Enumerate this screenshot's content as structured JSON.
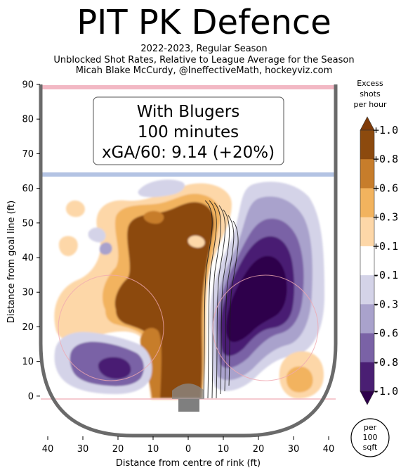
{
  "header": {
    "title": "PIT PK Defence",
    "subtitle_lines": [
      "2022-2023, Regular Season",
      "Unblocked Shot Rates, Relative to League Average for the Season",
      "Micah Blake McCurdy, @IneffectiveMath, hockeyviz.com"
    ]
  },
  "annotation": {
    "lines": [
      "With Blugers",
      "100 minutes",
      "xGA/60: 9.14 (+20%)"
    ]
  },
  "colorbar": {
    "title_lines": [
      "Excess",
      "shots",
      "per hour"
    ],
    "levels": [
      "+1.0",
      "+0.8",
      "+0.6",
      "+0.3",
      "+0.1",
      "-0.1",
      "-0.3",
      "-0.6",
      "-0.8",
      "-1.0"
    ],
    "colors": [
      "#8c4a0e",
      "#c77d2b",
      "#f2b35e",
      "#fdd7a8",
      "#ffffff",
      "#d4d3e8",
      "#a9a2cc",
      "#7a62a6",
      "#4a1f73"
    ],
    "over_color": "#7f3b08",
    "under_color": "#2d004b"
  },
  "unit_badge": {
    "lines": [
      "per",
      "100",
      "sqft"
    ]
  },
  "chart_data": {
    "type": "heatmap",
    "title": "PIT PK Defence",
    "xlabel": "Distance from centre of rink (ft)",
    "ylabel": "Distance from goal line (ft)",
    "xlim": [
      -42,
      42
    ],
    "ylim": [
      -11,
      90
    ],
    "x_ticks": [
      -40,
      -30,
      -20,
      -10,
      0,
      10,
      20,
      30,
      40
    ],
    "x_tick_labels": [
      "40",
      "30",
      "20",
      "10",
      "0",
      "10",
      "20",
      "30",
      "40"
    ],
    "y_ticks": [
      0,
      10,
      20,
      30,
      40,
      50,
      60,
      70,
      80,
      90
    ],
    "y_tick_labels": [
      "0",
      "10",
      "20",
      "30",
      "40",
      "50",
      "60",
      "70",
      "80",
      "90"
    ],
    "regions": [
      {
        "x": -6,
        "y": 32,
        "value": 1.0
      },
      {
        "x": 2,
        "y": 50,
        "value": 1.0
      },
      {
        "x": -12,
        "y": 45,
        "value": 0.6
      },
      {
        "x": -24,
        "y": 35,
        "value": 0.3
      },
      {
        "x": -34,
        "y": 54,
        "value": 0.3
      },
      {
        "x": -34,
        "y": 44,
        "value": 0.1
      },
      {
        "x": 18,
        "y": 22,
        "value": -1.0
      },
      {
        "x": 26,
        "y": 40,
        "value": -0.8
      },
      {
        "x": 24,
        "y": 32,
        "value": -0.6
      },
      {
        "x": 26,
        "y": 50,
        "value": -0.3
      },
      {
        "x": 18,
        "y": 60,
        "value": -0.1
      },
      {
        "x": -20,
        "y": 10,
        "value": -0.8
      },
      {
        "x": -24,
        "y": 13,
        "value": -0.3
      },
      {
        "x": -8,
        "y": 60,
        "value": -0.1
      },
      {
        "x": 33,
        "y": 6,
        "value": 0.6
      },
      {
        "x": 33,
        "y": 8,
        "value": 0.3
      },
      {
        "x": -24,
        "y": 44,
        "value": -0.3
      }
    ]
  }
}
